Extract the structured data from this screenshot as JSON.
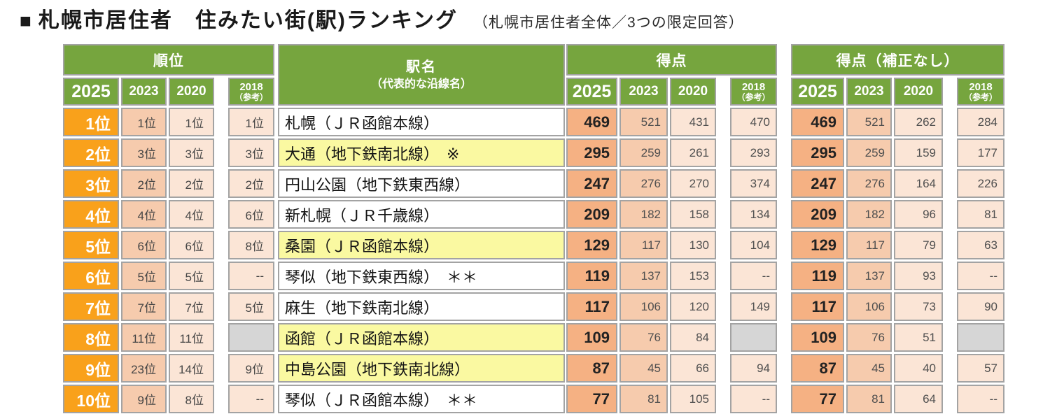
{
  "title": {
    "bullet": "■",
    "main": "札幌市居住者　住みたい街(駅)ランキング",
    "sub": "（札幌市居住者全体／3つの限定回答）"
  },
  "table": {
    "groups": {
      "rank": "順位",
      "station_line1": "駅名",
      "station_line2": "（代表的な沿線名）",
      "score": "得点",
      "score_raw": "得点（補正なし）"
    },
    "year_cols": {
      "y2025": "2025",
      "y2023": "2023",
      "y2020": "2020",
      "y2018_line1": "2018",
      "y2018_line2": "（参考）"
    },
    "rows": [
      {
        "rank2025": "1位",
        "rank2023": "1位",
        "rank2020": "1位",
        "rank2018": "1位",
        "station": "札幌（ＪＲ函館本線）",
        "highlight": false,
        "score2025": "469",
        "score2023": "521",
        "score2020": "431",
        "score2018": "470",
        "raw2025": "469",
        "raw2023": "521",
        "raw2020": "262",
        "raw2018": "284"
      },
      {
        "rank2025": "2位",
        "rank2023": "3位",
        "rank2020": "3位",
        "rank2018": "3位",
        "station": "大通（地下鉄南北線）　※",
        "highlight": true,
        "score2025": "295",
        "score2023": "259",
        "score2020": "261",
        "score2018": "293",
        "raw2025": "295",
        "raw2023": "259",
        "raw2020": "159",
        "raw2018": "177"
      },
      {
        "rank2025": "3位",
        "rank2023": "2位",
        "rank2020": "2位",
        "rank2018": "2位",
        "station": "円山公園（地下鉄東西線）",
        "highlight": false,
        "score2025": "247",
        "score2023": "276",
        "score2020": "270",
        "score2018": "374",
        "raw2025": "247",
        "raw2023": "276",
        "raw2020": "164",
        "raw2018": "226"
      },
      {
        "rank2025": "4位",
        "rank2023": "4位",
        "rank2020": "4位",
        "rank2018": "6位",
        "station": "新札幌（ＪＲ千歳線）",
        "highlight": false,
        "score2025": "209",
        "score2023": "182",
        "score2020": "158",
        "score2018": "134",
        "raw2025": "209",
        "raw2023": "182",
        "raw2020": "96",
        "raw2018": "81"
      },
      {
        "rank2025": "5位",
        "rank2023": "6位",
        "rank2020": "6位",
        "rank2018": "8位",
        "station": "桑園（ＪＲ函館本線）",
        "highlight": true,
        "score2025": "129",
        "score2023": "117",
        "score2020": "130",
        "score2018": "104",
        "raw2025": "129",
        "raw2023": "117",
        "raw2020": "79",
        "raw2018": "63"
      },
      {
        "rank2025": "6位",
        "rank2023": "5位",
        "rank2020": "5位",
        "rank2018": "--",
        "station": "琴似（地下鉄東西線）　＊＊",
        "highlight": false,
        "score2025": "119",
        "score2023": "137",
        "score2020": "153",
        "score2018": "--",
        "raw2025": "119",
        "raw2023": "137",
        "raw2020": "93",
        "raw2018": "--"
      },
      {
        "rank2025": "7位",
        "rank2023": "7位",
        "rank2020": "7位",
        "rank2018": "5位",
        "station": "麻生（地下鉄南北線）",
        "highlight": false,
        "score2025": "117",
        "score2023": "106",
        "score2020": "120",
        "score2018": "149",
        "raw2025": "117",
        "raw2023": "106",
        "raw2020": "73",
        "raw2018": "90"
      },
      {
        "rank2025": "8位",
        "rank2023": "11位",
        "rank2020": "11位",
        "rank2018": null,
        "station": "函館（ＪＲ函館本線）",
        "highlight": true,
        "score2025": "109",
        "score2023": "76",
        "score2020": "84",
        "score2018": null,
        "raw2025": "109",
        "raw2023": "76",
        "raw2020": "51",
        "raw2018": null
      },
      {
        "rank2025": "9位",
        "rank2023": "23位",
        "rank2020": "14位",
        "rank2018": "9位",
        "station": "中島公園（地下鉄南北線）",
        "highlight": true,
        "score2025": "87",
        "score2023": "45",
        "score2020": "66",
        "score2018": "94",
        "raw2025": "87",
        "raw2023": "45",
        "raw2020": "40",
        "raw2018": "57"
      },
      {
        "rank2025": "10位",
        "rank2023": "9位",
        "rank2020": "8位",
        "rank2018": "--",
        "station": "琴似（ＪＲ函館本線）　＊＊",
        "highlight": false,
        "score2025": "77",
        "score2023": "81",
        "score2020": "105",
        "score2018": "--",
        "raw2025": "77",
        "raw2023": "81",
        "raw2020": "64",
        "raw2018": "--"
      }
    ]
  },
  "colors": {
    "header_green": "#76A53E",
    "rank_orange": "#F9A11B",
    "col_2023_peach": "#F6CBAD",
    "col_2020_peach": "#FBE5D6",
    "col_2025_score_peach": "#F5B183",
    "highlight_yellow": "#FAF9A1",
    "empty_gray": "#D6D6D6",
    "border_gray": "#A3A3A3"
  }
}
